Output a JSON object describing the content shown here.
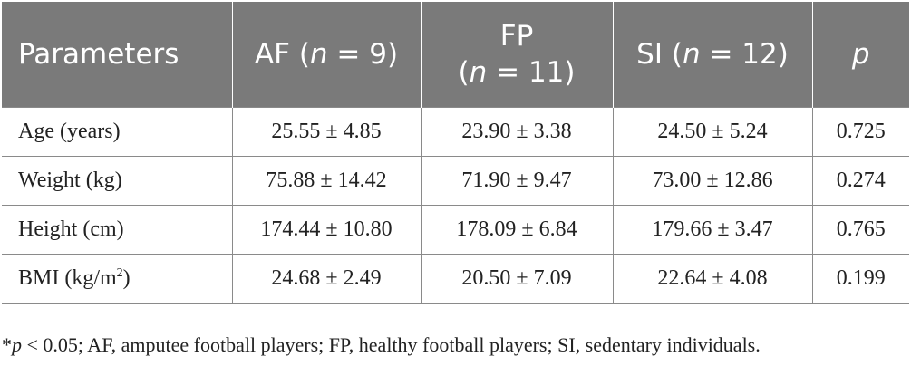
{
  "table": {
    "headers": {
      "parameters": "Parameters",
      "af_prefix": "AF (",
      "af_n": "n",
      "af_suffix": " = 9)",
      "fp_line1": "FP",
      "fp_prefix": "(",
      "fp_n": "n",
      "fp_suffix": " = 11)",
      "si_prefix": "SI (",
      "si_n": "n",
      "si_suffix": " = 12)",
      "p": "p"
    },
    "rows": [
      {
        "label": "Age (years)",
        "label_sup": "",
        "label_tail": "",
        "af": "25.55 ± 4.85",
        "fp": "23.90 ± 3.38",
        "si": "24.50 ± 5.24",
        "p": "0.725"
      },
      {
        "label": "Weight (kg)",
        "label_sup": "",
        "label_tail": "",
        "af": "75.88 ± 14.42",
        "fp": "71.90 ± 9.47",
        "si": "73.00 ± 12.86",
        "p": "0.274"
      },
      {
        "label": "Height (cm)",
        "label_sup": "",
        "label_tail": "",
        "af": "174.44 ± 10.80",
        "fp": "178.09 ± 6.84",
        "si": "179.66 ± 3.47",
        "p": "0.765"
      },
      {
        "label": "BMI (kg/m",
        "label_sup": "2",
        "label_tail": ")",
        "af": "24.68 ± 2.49",
        "fp": "20.50 ± 7.09",
        "si": "22.64 ± 4.08",
        "p": "0.199"
      }
    ]
  },
  "footnote": {
    "star": "*",
    "p_letter": "p",
    "rest": " < 0.05; AF, amputee football players; FP, healthy football players; SI, sedentary individuals."
  }
}
